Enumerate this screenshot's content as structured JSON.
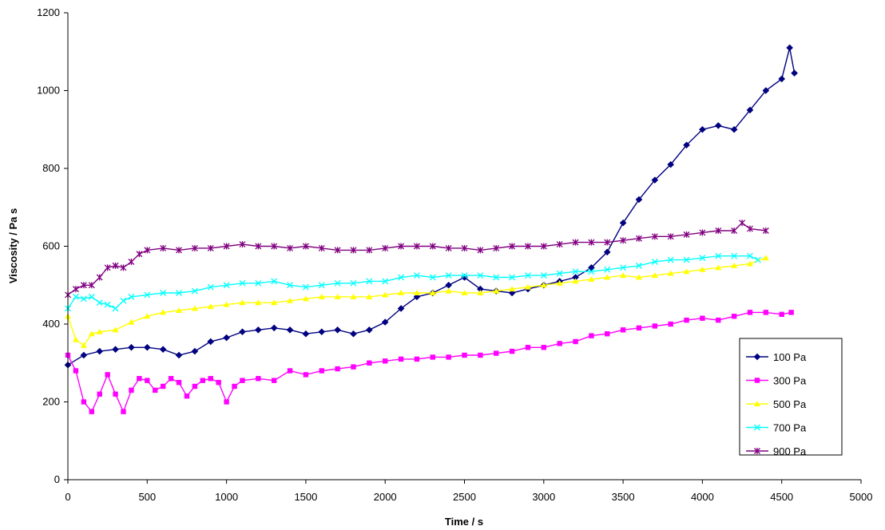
{
  "chart_data": {
    "type": "line",
    "title": "",
    "xlabel": "Time / s",
    "ylabel": "Viscosity / Pa s",
    "xlim": [
      0,
      5000
    ],
    "ylim": [
      0,
      1200
    ],
    "x_ticks": [
      "0",
      "500",
      "1000",
      "1500",
      "2000",
      "2500",
      "3000",
      "3500",
      "4000",
      "4500",
      "5000"
    ],
    "y_ticks": [
      "0",
      "200",
      "400",
      "600",
      "800",
      "1000",
      "1200"
    ],
    "grid": false,
    "legend_position": "bottom-right",
    "series": [
      {
        "name": "100 Pa",
        "color": "#000080",
        "marker": "diamond",
        "points": [
          [
            0,
            295
          ],
          [
            100,
            320
          ],
          [
            200,
            330
          ],
          [
            300,
            335
          ],
          [
            400,
            340
          ],
          [
            500,
            340
          ],
          [
            600,
            335
          ],
          [
            700,
            320
          ],
          [
            800,
            330
          ],
          [
            900,
            355
          ],
          [
            1000,
            365
          ],
          [
            1100,
            380
          ],
          [
            1200,
            385
          ],
          [
            1300,
            390
          ],
          [
            1400,
            385
          ],
          [
            1500,
            375
          ],
          [
            1600,
            380
          ],
          [
            1700,
            385
          ],
          [
            1800,
            375
          ],
          [
            1900,
            385
          ],
          [
            2000,
            405
          ],
          [
            2100,
            440
          ],
          [
            2200,
            470
          ],
          [
            2300,
            480
          ],
          [
            2400,
            500
          ],
          [
            2500,
            520
          ],
          [
            2600,
            490
          ],
          [
            2700,
            485
          ],
          [
            2800,
            480
          ],
          [
            2900,
            490
          ],
          [
            3000,
            500
          ],
          [
            3100,
            510
          ],
          [
            3200,
            520
          ],
          [
            3300,
            545
          ],
          [
            3400,
            585
          ],
          [
            3500,
            660
          ],
          [
            3600,
            720
          ],
          [
            3700,
            770
          ],
          [
            3800,
            810
          ],
          [
            3900,
            860
          ],
          [
            4000,
            900
          ],
          [
            4100,
            910
          ],
          [
            4200,
            900
          ],
          [
            4300,
            950
          ],
          [
            4400,
            1000
          ],
          [
            4500,
            1030
          ],
          [
            4550,
            1110
          ],
          [
            4580,
            1045
          ]
        ]
      },
      {
        "name": "300 Pa",
        "color": "#ff00ff",
        "marker": "square",
        "points": [
          [
            0,
            320
          ],
          [
            50,
            280
          ],
          [
            100,
            200
          ],
          [
            150,
            175
          ],
          [
            200,
            220
          ],
          [
            250,
            270
          ],
          [
            300,
            220
          ],
          [
            350,
            175
          ],
          [
            400,
            230
          ],
          [
            450,
            260
          ],
          [
            500,
            255
          ],
          [
            550,
            230
          ],
          [
            600,
            240
          ],
          [
            650,
            260
          ],
          [
            700,
            250
          ],
          [
            750,
            215
          ],
          [
            800,
            240
          ],
          [
            850,
            255
          ],
          [
            900,
            260
          ],
          [
            950,
            250
          ],
          [
            1000,
            200
          ],
          [
            1050,
            240
          ],
          [
            1100,
            255
          ],
          [
            1200,
            260
          ],
          [
            1300,
            255
          ],
          [
            1400,
            280
          ],
          [
            1500,
            270
          ],
          [
            1600,
            280
          ],
          [
            1700,
            285
          ],
          [
            1800,
            290
          ],
          [
            1900,
            300
          ],
          [
            2000,
            305
          ],
          [
            2100,
            310
          ],
          [
            2200,
            310
          ],
          [
            2300,
            315
          ],
          [
            2400,
            315
          ],
          [
            2500,
            320
          ],
          [
            2600,
            320
          ],
          [
            2700,
            325
          ],
          [
            2800,
            330
          ],
          [
            2900,
            340
          ],
          [
            3000,
            340
          ],
          [
            3100,
            350
          ],
          [
            3200,
            355
          ],
          [
            3300,
            370
          ],
          [
            3400,
            375
          ],
          [
            3500,
            385
          ],
          [
            3600,
            390
          ],
          [
            3700,
            395
          ],
          [
            3800,
            400
          ],
          [
            3900,
            410
          ],
          [
            4000,
            415
          ],
          [
            4100,
            410
          ],
          [
            4200,
            420
          ],
          [
            4300,
            430
          ],
          [
            4400,
            430
          ],
          [
            4500,
            425
          ],
          [
            4560,
            430
          ]
        ]
      },
      {
        "name": "500 Pa",
        "color": "#ffff00",
        "marker": "triangle",
        "points": [
          [
            0,
            420
          ],
          [
            50,
            360
          ],
          [
            100,
            345
          ],
          [
            150,
            375
          ],
          [
            200,
            380
          ],
          [
            300,
            385
          ],
          [
            400,
            405
          ],
          [
            500,
            420
          ],
          [
            600,
            430
          ],
          [
            700,
            435
          ],
          [
            800,
            440
          ],
          [
            900,
            445
          ],
          [
            1000,
            450
          ],
          [
            1100,
            455
          ],
          [
            1200,
            455
          ],
          [
            1300,
            455
          ],
          [
            1400,
            460
          ],
          [
            1500,
            465
          ],
          [
            1600,
            470
          ],
          [
            1700,
            470
          ],
          [
            1800,
            470
          ],
          [
            1900,
            470
          ],
          [
            2000,
            475
          ],
          [
            2100,
            480
          ],
          [
            2200,
            480
          ],
          [
            2300,
            480
          ],
          [
            2400,
            485
          ],
          [
            2500,
            480
          ],
          [
            2600,
            480
          ],
          [
            2700,
            485
          ],
          [
            2800,
            490
          ],
          [
            2900,
            495
          ],
          [
            3000,
            500
          ],
          [
            3100,
            505
          ],
          [
            3200,
            510
          ],
          [
            3300,
            515
          ],
          [
            3400,
            520
          ],
          [
            3500,
            525
          ],
          [
            3600,
            520
          ],
          [
            3700,
            525
          ],
          [
            3800,
            530
          ],
          [
            3900,
            535
          ],
          [
            4000,
            540
          ],
          [
            4100,
            545
          ],
          [
            4200,
            550
          ],
          [
            4300,
            555
          ],
          [
            4400,
            570
          ]
        ]
      },
      {
        "name": "700 Pa",
        "color": "#00ffff",
        "marker": "x",
        "points": [
          [
            0,
            440
          ],
          [
            50,
            470
          ],
          [
            100,
            465
          ],
          [
            150,
            470
          ],
          [
            200,
            455
          ],
          [
            250,
            450
          ],
          [
            300,
            440
          ],
          [
            350,
            460
          ],
          [
            400,
            470
          ],
          [
            500,
            475
          ],
          [
            600,
            480
          ],
          [
            700,
            480
          ],
          [
            800,
            485
          ],
          [
            900,
            495
          ],
          [
            1000,
            500
          ],
          [
            1100,
            505
          ],
          [
            1200,
            505
          ],
          [
            1300,
            510
          ],
          [
            1400,
            500
          ],
          [
            1500,
            495
          ],
          [
            1600,
            500
          ],
          [
            1700,
            505
          ],
          [
            1800,
            505
          ],
          [
            1900,
            510
          ],
          [
            2000,
            510
          ],
          [
            2100,
            520
          ],
          [
            2200,
            525
          ],
          [
            2300,
            520
          ],
          [
            2400,
            525
          ],
          [
            2500,
            525
          ],
          [
            2600,
            525
          ],
          [
            2700,
            520
          ],
          [
            2800,
            520
          ],
          [
            2900,
            525
          ],
          [
            3000,
            525
          ],
          [
            3100,
            530
          ],
          [
            3200,
            535
          ],
          [
            3300,
            535
          ],
          [
            3400,
            540
          ],
          [
            3500,
            545
          ],
          [
            3600,
            550
          ],
          [
            3700,
            560
          ],
          [
            3800,
            565
          ],
          [
            3900,
            565
          ],
          [
            4000,
            570
          ],
          [
            4100,
            575
          ],
          [
            4200,
            575
          ],
          [
            4300,
            575
          ],
          [
            4350,
            565
          ]
        ]
      },
      {
        "name": "900 Pa",
        "color": "#800080",
        "marker": "star",
        "points": [
          [
            0,
            475
          ],
          [
            50,
            490
          ],
          [
            100,
            500
          ],
          [
            150,
            500
          ],
          [
            200,
            520
          ],
          [
            250,
            545
          ],
          [
            300,
            550
          ],
          [
            350,
            545
          ],
          [
            400,
            560
          ],
          [
            450,
            580
          ],
          [
            500,
            590
          ],
          [
            600,
            595
          ],
          [
            700,
            590
          ],
          [
            800,
            595
          ],
          [
            900,
            595
          ],
          [
            1000,
            600
          ],
          [
            1100,
            605
          ],
          [
            1200,
            600
          ],
          [
            1300,
            600
          ],
          [
            1400,
            595
          ],
          [
            1500,
            600
          ],
          [
            1600,
            595
          ],
          [
            1700,
            590
          ],
          [
            1800,
            590
          ],
          [
            1900,
            590
          ],
          [
            2000,
            595
          ],
          [
            2100,
            600
          ],
          [
            2200,
            600
          ],
          [
            2300,
            600
          ],
          [
            2400,
            595
          ],
          [
            2500,
            595
          ],
          [
            2600,
            590
          ],
          [
            2700,
            595
          ],
          [
            2800,
            600
          ],
          [
            2900,
            600
          ],
          [
            3000,
            600
          ],
          [
            3100,
            605
          ],
          [
            3200,
            610
          ],
          [
            3300,
            610
          ],
          [
            3400,
            610
          ],
          [
            3500,
            615
          ],
          [
            3600,
            620
          ],
          [
            3700,
            625
          ],
          [
            3800,
            625
          ],
          [
            3900,
            630
          ],
          [
            4000,
            635
          ],
          [
            4100,
            640
          ],
          [
            4200,
            640
          ],
          [
            4250,
            660
          ],
          [
            4300,
            645
          ],
          [
            4400,
            640
          ]
        ]
      }
    ]
  }
}
